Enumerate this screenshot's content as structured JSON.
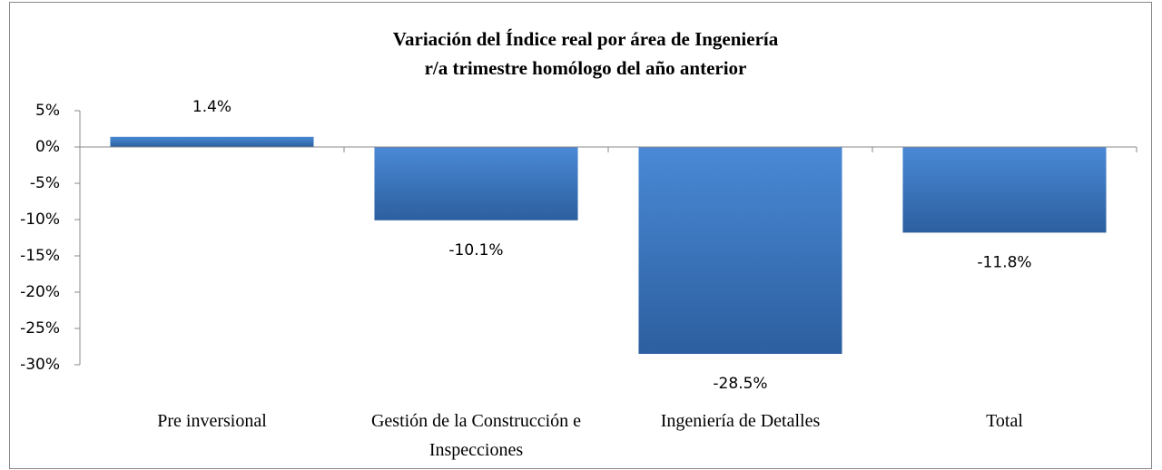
{
  "chart_data": {
    "type": "bar",
    "title": [
      "Variación del Índice real por área de Ingeniería",
      "r/a trimestre homólogo del año anterior"
    ],
    "categories": [
      "Pre inversional",
      "Gestión de la Construcción e Inspecciones",
      "Ingeniería de Detalles",
      "Total"
    ],
    "values": [
      1.4,
      -10.1,
      -28.5,
      -11.8
    ],
    "value_labels": [
      "1.4%",
      "-10.1%",
      "-28.5%",
      "-11.8%"
    ],
    "color": "#3a75c0",
    "ylim": [
      -30,
      5
    ],
    "yticks": [
      {
        "value": 5,
        "label": "5%"
      },
      {
        "value": 0,
        "label": "0%"
      },
      {
        "value": -5,
        "label": "-5%"
      },
      {
        "value": -10,
        "label": "-10%"
      },
      {
        "value": -15,
        "label": "-15%"
      },
      {
        "value": -20,
        "label": "-20%"
      },
      {
        "value": -25,
        "label": "-25%"
      },
      {
        "value": -30,
        "label": "-30%"
      }
    ],
    "grid": false
  }
}
